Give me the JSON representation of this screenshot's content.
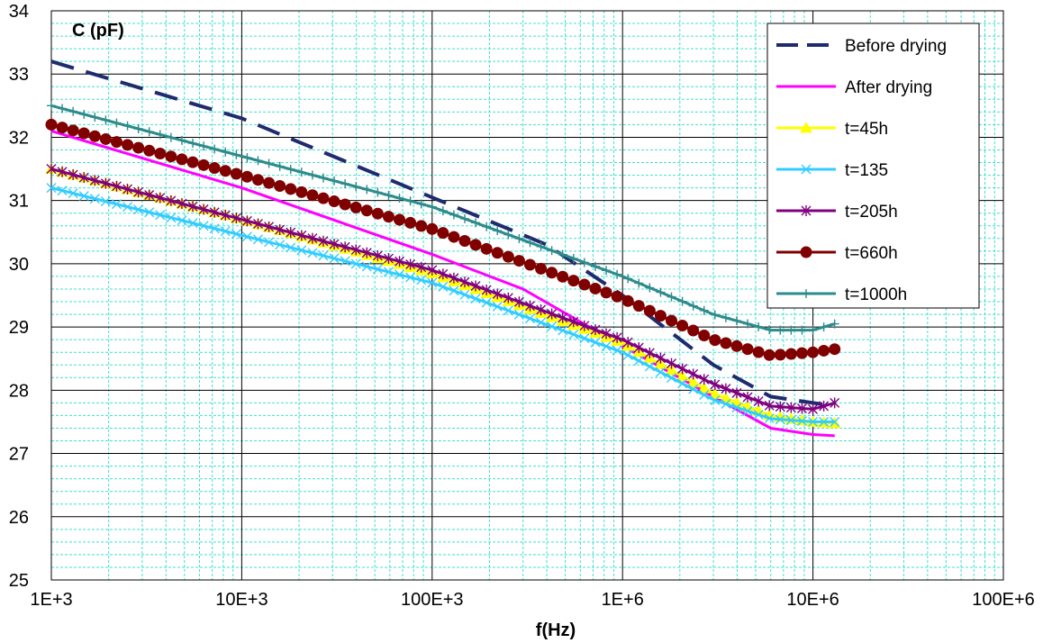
{
  "chart_data": {
    "type": "line",
    "x_scale": "log",
    "xlabel": "f(Hz)",
    "ylabel": "C (pF)",
    "xlim": [
      1000,
      100000000
    ],
    "ylim": [
      25,
      34
    ],
    "x_tick_labels": [
      "1E+3",
      "10E+3",
      "100E+3",
      "1E+6",
      "10E+6",
      "100E+6"
    ],
    "y_tick_labels": [
      "25",
      "26",
      "27",
      "28",
      "29",
      "30",
      "31",
      "32",
      "33",
      "34"
    ],
    "grid": true,
    "legend_position": "top-right",
    "series": [
      {
        "name": "Before drying",
        "color": "#1f2b6e",
        "style": "dashed",
        "marker": "none",
        "x": [
          1000,
          10000,
          100000,
          400000,
          1000000,
          3000000,
          6000000,
          10000000,
          13000000
        ],
        "y": [
          33.2,
          32.3,
          31.05,
          30.3,
          29.5,
          28.4,
          27.9,
          27.8,
          27.75
        ]
      },
      {
        "name": "After drying",
        "color": "#ff00ff",
        "style": "solid",
        "marker": "none",
        "x": [
          1000,
          10000,
          100000,
          300000,
          1000000,
          3000000,
          6000000,
          10000000,
          13000000
        ],
        "y": [
          32.1,
          31.2,
          30.15,
          29.6,
          28.7,
          27.9,
          27.4,
          27.3,
          27.28
        ]
      },
      {
        "name": "t=45h",
        "color": "#ffff00",
        "style": "solid",
        "marker": "triangle",
        "x": [
          1000,
          10000,
          100000,
          1000000,
          3000000,
          6000000,
          10000000,
          13000000
        ],
        "y": [
          31.5,
          30.7,
          29.85,
          28.75,
          27.95,
          27.6,
          27.5,
          27.48
        ]
      },
      {
        "name": "t=135",
        "color": "#33ccff",
        "style": "solid",
        "marker": "x",
        "x": [
          1000,
          10000,
          100000,
          1000000,
          3000000,
          6000000,
          10000000,
          13000000
        ],
        "y": [
          31.2,
          30.45,
          29.7,
          28.6,
          27.85,
          27.55,
          27.5,
          27.5
        ]
      },
      {
        "name": "t=205h",
        "color": "#800080",
        "style": "solid",
        "marker": "asterisk",
        "x": [
          1000,
          10000,
          100000,
          1000000,
          3000000,
          6000000,
          10000000,
          13000000
        ],
        "y": [
          31.5,
          30.7,
          29.9,
          28.8,
          28.1,
          27.75,
          27.7,
          27.8
        ]
      },
      {
        "name": "t=660h",
        "color": "#800000",
        "style": "solid",
        "marker": "circle",
        "x": [
          1000,
          10000,
          100000,
          1000000,
          3000000,
          6000000,
          10000000,
          13000000
        ],
        "y": [
          32.2,
          31.4,
          30.55,
          29.45,
          28.8,
          28.55,
          28.6,
          28.65
        ]
      },
      {
        "name": "t=1000h",
        "color": "#2e8b8b",
        "style": "solid",
        "marker": "plus",
        "x": [
          1000,
          10000,
          100000,
          1000000,
          3000000,
          6000000,
          10000000,
          13000000
        ],
        "y": [
          32.5,
          31.7,
          30.9,
          29.8,
          29.2,
          28.95,
          28.95,
          29.05
        ]
      }
    ]
  }
}
